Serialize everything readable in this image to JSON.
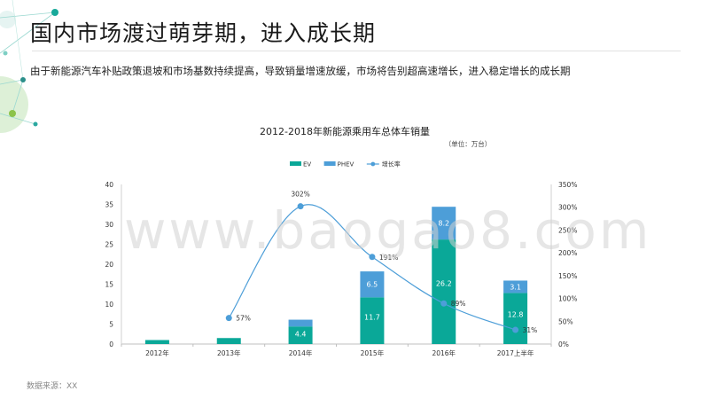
{
  "page": {
    "title": "国内市场渡过萌芽期，进入成长期",
    "subtitle": "由于新能源汽车补贴政策退坡和市场基数持续提高，导致销量增速放缓，市场将告别超高速增长，进入稳定增长的成长期",
    "source": "数据来源：XX",
    "watermark": "www.baogao8.com"
  },
  "chart_data": {
    "type": "bar",
    "stacked": true,
    "title": "2012-2018年新能源乘用车总体车销量",
    "unit_note": "（单位：万台）",
    "categories": [
      "2012年",
      "2013年",
      "2014年",
      "2015年",
      "2016年",
      "2017上半年"
    ],
    "series": [
      {
        "name": "EV",
        "type": "bar",
        "color": "#0aa898",
        "values": [
          1.0,
          1.5,
          4.4,
          11.7,
          26.2,
          12.8
        ],
        "labels": [
          "",
          "",
          "4.4",
          "11.7",
          "26.2",
          "12.8"
        ]
      },
      {
        "name": "PHEV",
        "type": "bar",
        "color": "#4d9ed8",
        "values": [
          0,
          0,
          1.7,
          6.5,
          8.2,
          3.1
        ],
        "labels": [
          "",
          "",
          "",
          "6.5",
          "8.2",
          "3.1"
        ]
      },
      {
        "name": "增长率",
        "type": "line",
        "axis": "right",
        "color": "#4d9ed8",
        "values": [
          null,
          57,
          302,
          191,
          89,
          31
        ],
        "labels": [
          "",
          "57%",
          "302%",
          "191%",
          "89%",
          "31%"
        ]
      }
    ],
    "y_left": {
      "min": 0,
      "max": 40,
      "ticks": [
        "0",
        "5",
        "10",
        "15",
        "20",
        "25",
        "30",
        "35",
        "40"
      ]
    },
    "y_right": {
      "min": 0,
      "max": 350,
      "ticks": [
        "0%",
        "50%",
        "100%",
        "150%",
        "200%",
        "250%",
        "300%",
        "350%"
      ]
    },
    "legend_position": "top",
    "grid": false
  }
}
